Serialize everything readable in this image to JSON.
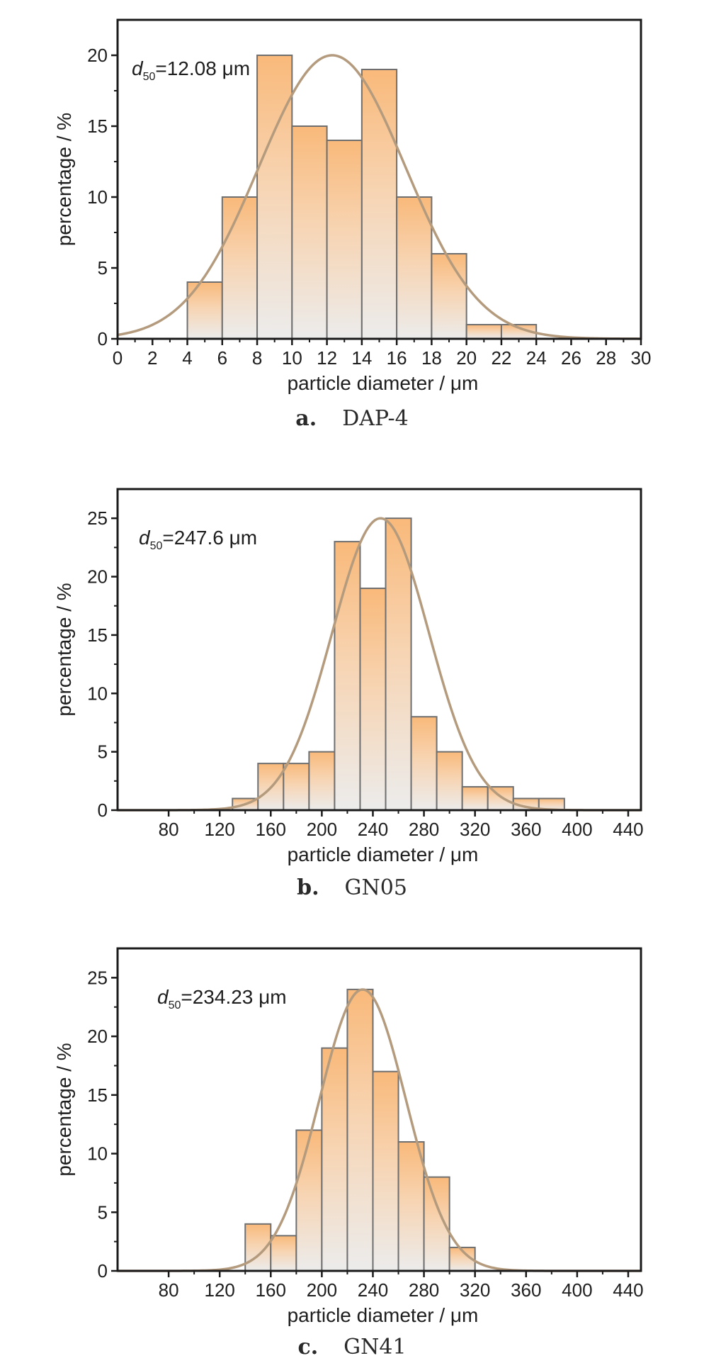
{
  "figures": [
    {
      "caption_letter": "a.",
      "caption_name": "DAP-4",
      "annotation": {
        "symbol": "d",
        "subscript": "50",
        "text": "=12.08 μm"
      }
    },
    {
      "caption_letter": "b.",
      "caption_name": "GN05",
      "annotation": {
        "symbol": "d",
        "subscript": "50",
        "text": "=247.6 μm"
      }
    },
    {
      "caption_letter": "c.",
      "caption_name": "GN41",
      "annotation": {
        "symbol": "d",
        "subscript": "50",
        "text": "=234.23 μm"
      }
    }
  ],
  "colors": {
    "bar_top": "#f9b97a",
    "bar_bottom": "#ececec",
    "bar_stroke": "#6f6f6f",
    "curve": "#b49b7e",
    "frame": "#1a1a1a"
  },
  "chart_data": [
    {
      "type": "bar",
      "xlabel": "particle diameter / μm",
      "ylabel": "percentage / %",
      "xlim": [
        0,
        30
      ],
      "ylim": [
        0,
        22.5
      ],
      "xticks": [
        0,
        2,
        4,
        6,
        8,
        10,
        12,
        14,
        16,
        18,
        20,
        22,
        24,
        26,
        28,
        30
      ],
      "xtick_labels": [
        "0",
        "2",
        "4",
        "6",
        "8",
        "10",
        "12",
        "14",
        "16",
        "18",
        "20",
        "22",
        "24",
        "26",
        "28",
        "30"
      ],
      "yticks": [
        0,
        5,
        10,
        15,
        20
      ],
      "ytick_labels": [
        "0",
        "5",
        "10",
        "15",
        "20"
      ],
      "bin_width": 2,
      "bin_starts": [
        4,
        6,
        8,
        10,
        12,
        14,
        16,
        18,
        20,
        22
      ],
      "values": [
        4,
        10,
        20,
        15,
        14,
        19,
        10,
        6,
        1,
        1
      ],
      "fit_curve": {
        "type": "gaussian",
        "peak_x": 12.3,
        "peak_y": 20,
        "sigma": 4.2
      }
    },
    {
      "type": "bar",
      "xlabel": "particle diameter / μm",
      "ylabel": "percentage / %",
      "xlim": [
        40,
        450
      ],
      "ylim": [
        0,
        27.5
      ],
      "xticks": [
        80,
        120,
        160,
        200,
        240,
        280,
        320,
        360,
        400,
        440
      ],
      "xtick_labels": [
        "80",
        "120",
        "160",
        "200",
        "240",
        "280",
        "320",
        "360",
        "400",
        "440"
      ],
      "yticks": [
        0,
        5,
        10,
        15,
        20,
        25
      ],
      "ytick_labels": [
        "0",
        "5",
        "10",
        "15",
        "20",
        "25"
      ],
      "bin_width": 20,
      "bin_starts": [
        130,
        150,
        170,
        190,
        210,
        230,
        250,
        270,
        290,
        310,
        330,
        350,
        370
      ],
      "values": [
        1,
        4,
        4,
        5,
        23,
        19,
        25,
        8,
        5,
        2,
        2,
        1,
        1
      ],
      "fit_curve": {
        "type": "gaussian",
        "peak_x": 246,
        "peak_y": 25,
        "sigma": 38
      }
    },
    {
      "type": "bar",
      "xlabel": "particle diameter / μm",
      "ylabel": "percentage / %",
      "xlim": [
        40,
        450
      ],
      "ylim": [
        0,
        27.5
      ],
      "xticks": [
        80,
        120,
        160,
        200,
        240,
        280,
        320,
        360,
        400,
        440
      ],
      "xtick_labels": [
        "80",
        "120",
        "160",
        "200",
        "240",
        "280",
        "320",
        "360",
        "400",
        "440"
      ],
      "yticks": [
        0,
        5,
        10,
        15,
        20,
        25
      ],
      "ytick_labels": [
        "0",
        "5",
        "10",
        "15",
        "20",
        "25"
      ],
      "bin_width": 20,
      "bin_starts": [
        140,
        160,
        180,
        200,
        220,
        240,
        260,
        280,
        300
      ],
      "values": [
        4,
        3,
        12,
        19,
        24,
        17,
        11,
        8,
        2
      ],
      "fit_curve": {
        "type": "gaussian",
        "peak_x": 232,
        "peak_y": 24,
        "sigma": 34
      }
    }
  ]
}
